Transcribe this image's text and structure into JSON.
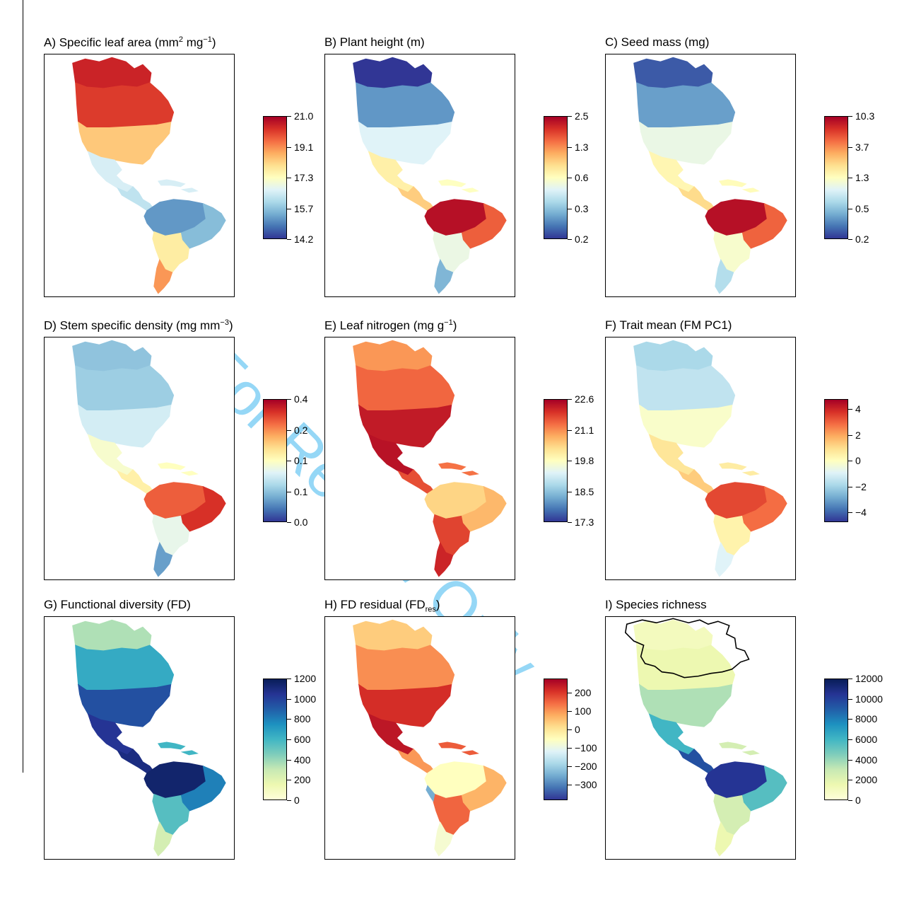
{
  "watermark": "For Review Only",
  "chart_data": [
    {
      "type": "heatmap",
      "panel": "A",
      "title_prefix": "A) Specific leaf area (mm",
      "title_sup1": "2",
      "title_mid": " mg",
      "title_sup2": "−1",
      "title_suffix": ")",
      "colorscale": "red-yellow-blue (high = red)",
      "legend_ticks": [
        "21.0",
        "19.1",
        "17.3",
        "15.7",
        "14.2"
      ],
      "legend_range": [
        14.2,
        21.0
      ],
      "regions": {
        "arctic": 20.5,
        "boreal": 20.2,
        "temperate": 18.6,
        "mexico": 16.8,
        "central_america": 16.5,
        "caribbean": 16.8,
        "amazon": 15.3,
        "brazil_east": 15.8,
        "southern_sa": 18.0,
        "patagonia": 19.2
      }
    },
    {
      "type": "heatmap",
      "panel": "B",
      "title_prefix": "B) Plant height (m)",
      "colorscale": "red-yellow-blue (high = red)",
      "legend_ticks": [
        "2.5",
        "1.3",
        "0.6",
        "0.3",
        "0.2"
      ],
      "legend_range": [
        0.2,
        2.5
      ],
      "regions": {
        "arctic": 0.2,
        "boreal": 0.3,
        "temperate": 0.55,
        "mexico": 0.8,
        "central_america": 1.0,
        "caribbean": 0.7,
        "amazon": 2.3,
        "brazil_east": 1.6,
        "southern_sa": 0.6,
        "patagonia": 0.35
      }
    },
    {
      "type": "heatmap",
      "panel": "C",
      "title_prefix": "C) Seed mass (mg)",
      "colorscale": "red-yellow-blue (high = red)",
      "legend_ticks": [
        "10.3",
        "3.7",
        "1.3",
        "0.5",
        "0.2"
      ],
      "legend_range": [
        0.2,
        10.3
      ],
      "regions": {
        "arctic": 0.25,
        "boreal": 0.4,
        "temperate": 1.1,
        "mexico": 1.6,
        "central_america": 2.2,
        "caribbean": 1.5,
        "amazon": 9.0,
        "brazil_east": 5.0,
        "southern_sa": 1.3,
        "patagonia": 0.7
      }
    },
    {
      "type": "heatmap",
      "panel": "D",
      "title_prefix": "D) Stem specific density (mg mm",
      "title_sup1": "−3",
      "title_suffix": ")",
      "colorscale": "red-yellow-blue (high = red)",
      "legend_ticks": [
        "0.4",
        "0.2",
        "0.1",
        "0.1",
        "0.0"
      ],
      "legend_range": [
        0.0,
        0.4
      ],
      "regions": {
        "arctic": 0.1,
        "boreal": 0.11,
        "temperate": 0.15,
        "mexico": 0.19,
        "central_america": 0.22,
        "caribbean": 0.2,
        "amazon": 0.33,
        "brazil_east": 0.36,
        "southern_sa": 0.17,
        "patagonia": 0.07
      }
    },
    {
      "type": "heatmap",
      "panel": "E",
      "title_prefix": "E) Leaf nitrogen (mg g",
      "title_sup1": "−1",
      "title_suffix": ")",
      "colorscale": "red-yellow-blue (high = red)",
      "legend_ticks": [
        "22.6",
        "21.1",
        "19.8",
        "18.5",
        "17.3"
      ],
      "legend_range": [
        17.3,
        22.6
      ],
      "regions": {
        "arctic": 21.2,
        "boreal": 21.6,
        "temperate": 22.3,
        "mexico": 22.4,
        "central_america": 21.8,
        "caribbean": 21.5,
        "amazon": 20.6,
        "brazil_east": 20.9,
        "southern_sa": 21.9,
        "patagonia": 22.2
      }
    },
    {
      "type": "heatmap",
      "panel": "F",
      "title_prefix": "F) Trait mean (FM PC1)",
      "colorscale": "red-yellow-blue (high = red)",
      "legend_ticks": [
        "4",
        "2",
        "0",
        "−2",
        "−4"
      ],
      "legend_range": [
        -5,
        5
      ],
      "regions": {
        "arctic": -2.0,
        "boreal": -1.6,
        "temperate": -0.2,
        "mexico": 0.8,
        "central_america": 1.4,
        "caribbean": 0.6,
        "amazon": 3.6,
        "brazil_east": 3.0,
        "southern_sa": 0.4,
        "patagonia": -1.0
      }
    },
    {
      "type": "heatmap",
      "panel": "G",
      "title_prefix": "G) Functional diversity (FD)",
      "colorscale": "yellow-green-blue (high = dark blue)",
      "legend_ticks": [
        "1200",
        "1000",
        "800",
        "600",
        "400",
        "200",
        "0"
      ],
      "legend_range": [
        0,
        1200
      ],
      "regions": {
        "arctic": 350,
        "boreal": 650,
        "temperate": 950,
        "mexico": 1050,
        "central_america": 1100,
        "caribbean": 600,
        "amazon": 1150,
        "brazil_east": 800,
        "southern_sa": 550,
        "patagonia": 250
      }
    },
    {
      "type": "heatmap",
      "panel": "H",
      "title_prefix": "H) FD residual (FD",
      "title_sub": "res",
      "title_suffix": ")",
      "colorscale": "red-yellow-blue (high = red)",
      "legend_ticks": [
        "200",
        "100",
        "0",
        "−100",
        "−200",
        "−300"
      ],
      "legend_range": [
        -380,
        260
      ],
      "regions": {
        "arctic": 30,
        "boreal": 100,
        "temperate": 200,
        "mexico": 230,
        "central_america": 90,
        "caribbean": 150,
        "amazon": -60,
        "andes": -250,
        "brazil_east": 60,
        "southern_sa": 140,
        "patagonia": -80
      }
    },
    {
      "type": "heatmap",
      "panel": "I",
      "title_prefix": "I) Species richness",
      "colorscale": "yellow-green-blue (high = dark blue)",
      "legend_ticks": [
        "12000",
        "10000",
        "8000",
        "6000",
        "4000",
        "2000",
        "0"
      ],
      "legend_range": [
        0,
        12000
      ],
      "regions": {
        "arctic": 1000,
        "boreal": 1500,
        "temperate": 3500,
        "mexico": 6000,
        "central_america": 9500,
        "caribbean": 2500,
        "amazon": 10500,
        "brazil_east": 5500,
        "southern_sa": 2500,
        "patagonia": 1500
      },
      "overlay": "outline of northern North America"
    }
  ]
}
